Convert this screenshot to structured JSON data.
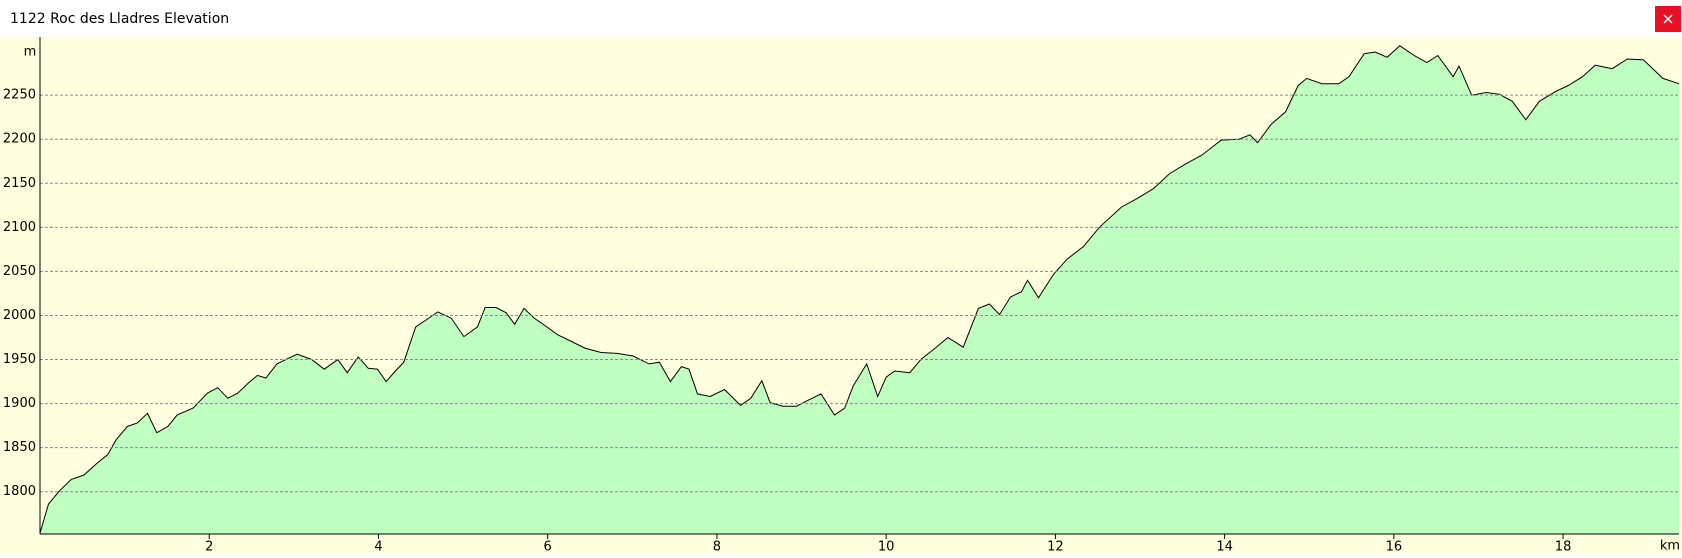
{
  "chart_data": {
    "type": "area",
    "title": "1122 Roc des Lladres Elevation",
    "y_label": "m",
    "x_label": "km",
    "x": [
      0,
      0.1,
      0.23,
      0.37,
      0.52,
      0.67,
      0.8,
      0.9,
      1.03,
      1.15,
      1.27,
      1.38,
      1.51,
      1.62,
      1.81,
      1.98,
      2.1,
      2.22,
      2.34,
      2.47,
      2.57,
      2.67,
      2.8,
      2.93,
      3.04,
      3.21,
      3.36,
      3.52,
      3.63,
      3.76,
      3.88,
      3.99,
      4.09,
      4.2,
      4.3,
      4.44,
      4.58,
      4.7,
      4.86,
      5.01,
      5.17,
      5.26,
      5.39,
      5.51,
      5.61,
      5.72,
      5.84,
      5.99,
      6.12,
      6.27,
      6.44,
      6.63,
      6.82,
      7.01,
      7.2,
      7.32,
      7.45,
      7.58,
      7.67,
      7.77,
      7.92,
      8.09,
      8.28,
      8.4,
      8.53,
      8.63,
      8.78,
      8.94,
      9.06,
      9.23,
      9.39,
      9.51,
      9.61,
      9.77,
      9.9,
      10.0,
      10.1,
      10.28,
      10.41,
      10.58,
      10.73,
      10.91,
      11.09,
      11.22,
      11.34,
      11.47,
      11.6,
      11.67,
      11.8,
      11.98,
      12.14,
      12.33,
      12.52,
      12.78,
      12.97,
      13.16,
      13.35,
      13.54,
      13.73,
      13.96,
      14.17,
      14.3,
      14.39,
      14.55,
      14.72,
      14.87,
      14.97,
      15.15,
      15.35,
      15.47,
      15.65,
      15.78,
      15.92,
      16.07,
      16.24,
      16.39,
      16.52,
      16.7,
      16.77,
      16.92,
      17.09,
      17.25,
      17.4,
      17.56,
      17.72,
      17.91,
      18.06,
      18.23,
      18.38,
      18.58,
      18.76,
      18.95,
      19.18,
      19.37
    ],
    "series": [
      {
        "name": "Elevation",
        "color": "#000000",
        "fill": "#bfffbf",
        "values": [
          1753,
          1786,
          1801,
          1814,
          1819,
          1832,
          1842,
          1859,
          1874,
          1878,
          1889,
          1867,
          1874,
          1887,
          1895,
          1912,
          1918,
          1906,
          1912,
          1924,
          1932,
          1929,
          1945,
          1951,
          1956,
          1950,
          1939,
          1950,
          1935,
          1953,
          1940,
          1939,
          1925,
          1937,
          1947,
          1987,
          1996,
          2004,
          1997,
          1976,
          1987,
          2009,
          2009,
          2003,
          1990,
          2008,
          1997,
          1987,
          1978,
          1971,
          1963,
          1958,
          1957,
          1954,
          1945,
          1947,
          1925,
          1942,
          1939,
          1911,
          1908,
          1916,
          1898,
          1906,
          1926,
          1901,
          1897,
          1897,
          1903,
          1911,
          1887,
          1895,
          1920,
          1945,
          1908,
          1930,
          1937,
          1935,
          1950,
          1963,
          1975,
          1964,
          2008,
          2013,
          2001,
          2021,
          2027,
          2040,
          2020,
          2047,
          2064,
          2078,
          2100,
          2123,
          2133,
          2144,
          2161,
          2172,
          2182,
          2199,
          2200,
          2205,
          2196,
          2217,
          2231,
          2261,
          2269,
          2263,
          2263,
          2271,
          2297,
          2299,
          2293,
          2306,
          2295,
          2287,
          2295,
          2271,
          2283,
          2250,
          2253,
          2251,
          2243,
          2222,
          2243,
          2254,
          2261,
          2271,
          2284,
          2280,
          2291,
          2290,
          2269,
          2263
        ]
      }
    ],
    "xlim": [
      0,
      19.37
    ],
    "ylim": [
      1752,
      2316
    ],
    "xticks": [
      2,
      4,
      6,
      8,
      10,
      12,
      14,
      16,
      18
    ],
    "yticks": [
      1800,
      1850,
      1900,
      1950,
      2000,
      2050,
      2100,
      2150,
      2200,
      2250
    ],
    "grid": true
  }
}
